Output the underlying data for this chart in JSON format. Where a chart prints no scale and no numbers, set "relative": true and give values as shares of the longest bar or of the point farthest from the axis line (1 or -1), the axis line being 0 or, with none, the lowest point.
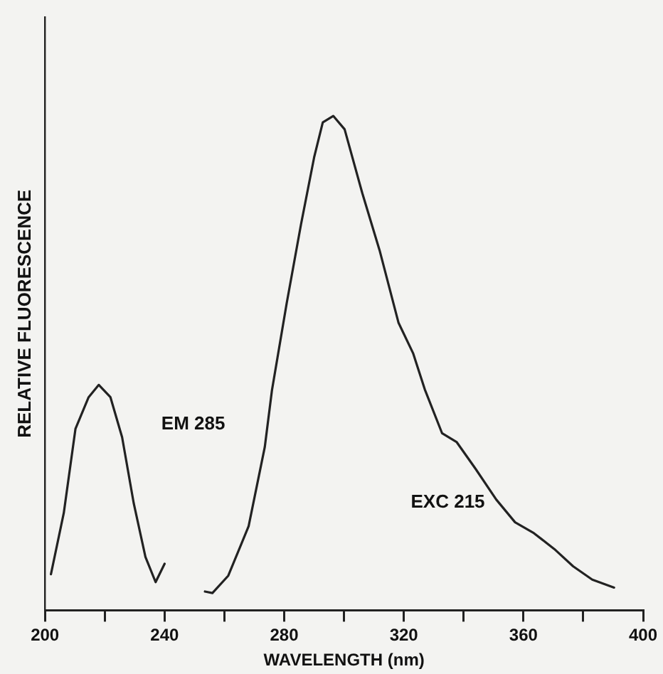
{
  "chart_data": {
    "type": "line",
    "relative": true,
    "xlabel": "WAVELENGTH (nm)",
    "ylabel": "RELATIVE FLUORESCENCE",
    "xlim": [
      200,
      400
    ],
    "xticks": [
      200,
      {
        "value": 220,
        "label": null
      },
      240,
      {
        "value": 260,
        "label": null
      },
      280,
      {
        "value": 300,
        "label": null
      },
      320,
      {
        "value": 340,
        "label": null
      },
      360,
      {
        "value": 380,
        "label": null
      },
      400
    ],
    "grid": false,
    "legend": false,
    "marker": "none",
    "line_style": "solid",
    "series": [
      {
        "name": "EM 285",
        "color": "#222222",
        "x": [
          202,
          206.3,
          210.2,
          214.6,
          218,
          221.9,
          225.8,
          229.7,
          233.6,
          237,
          240
        ],
        "values": [
          0.073,
          0.197,
          0.367,
          0.431,
          0.456,
          0.431,
          0.35,
          0.216,
          0.108,
          0.057,
          0.094
        ]
      },
      {
        "name": "EXC 215",
        "color": "#222222",
        "x": [
          253.5,
          256,
          261.3,
          268.1,
          273.5,
          275.9,
          280.8,
          285.6,
          290,
          292.9,
          296.4,
          300.2,
          306.1,
          311.9,
          318.2,
          323.1,
          327,
          332.8,
          337.7,
          344,
          350.9,
          357.2,
          363.5,
          370.3,
          376.6,
          383,
          390.3
        ],
        "values": [
          0.038,
          0.035,
          0.07,
          0.17,
          0.33,
          0.445,
          0.62,
          0.78,
          0.916,
          0.987,
          1,
          0.973,
          0.844,
          0.728,
          0.582,
          0.52,
          0.447,
          0.358,
          0.34,
          0.286,
          0.224,
          0.178,
          0.156,
          0.124,
          0.089,
          0.062,
          0.046
        ]
      }
    ]
  }
}
